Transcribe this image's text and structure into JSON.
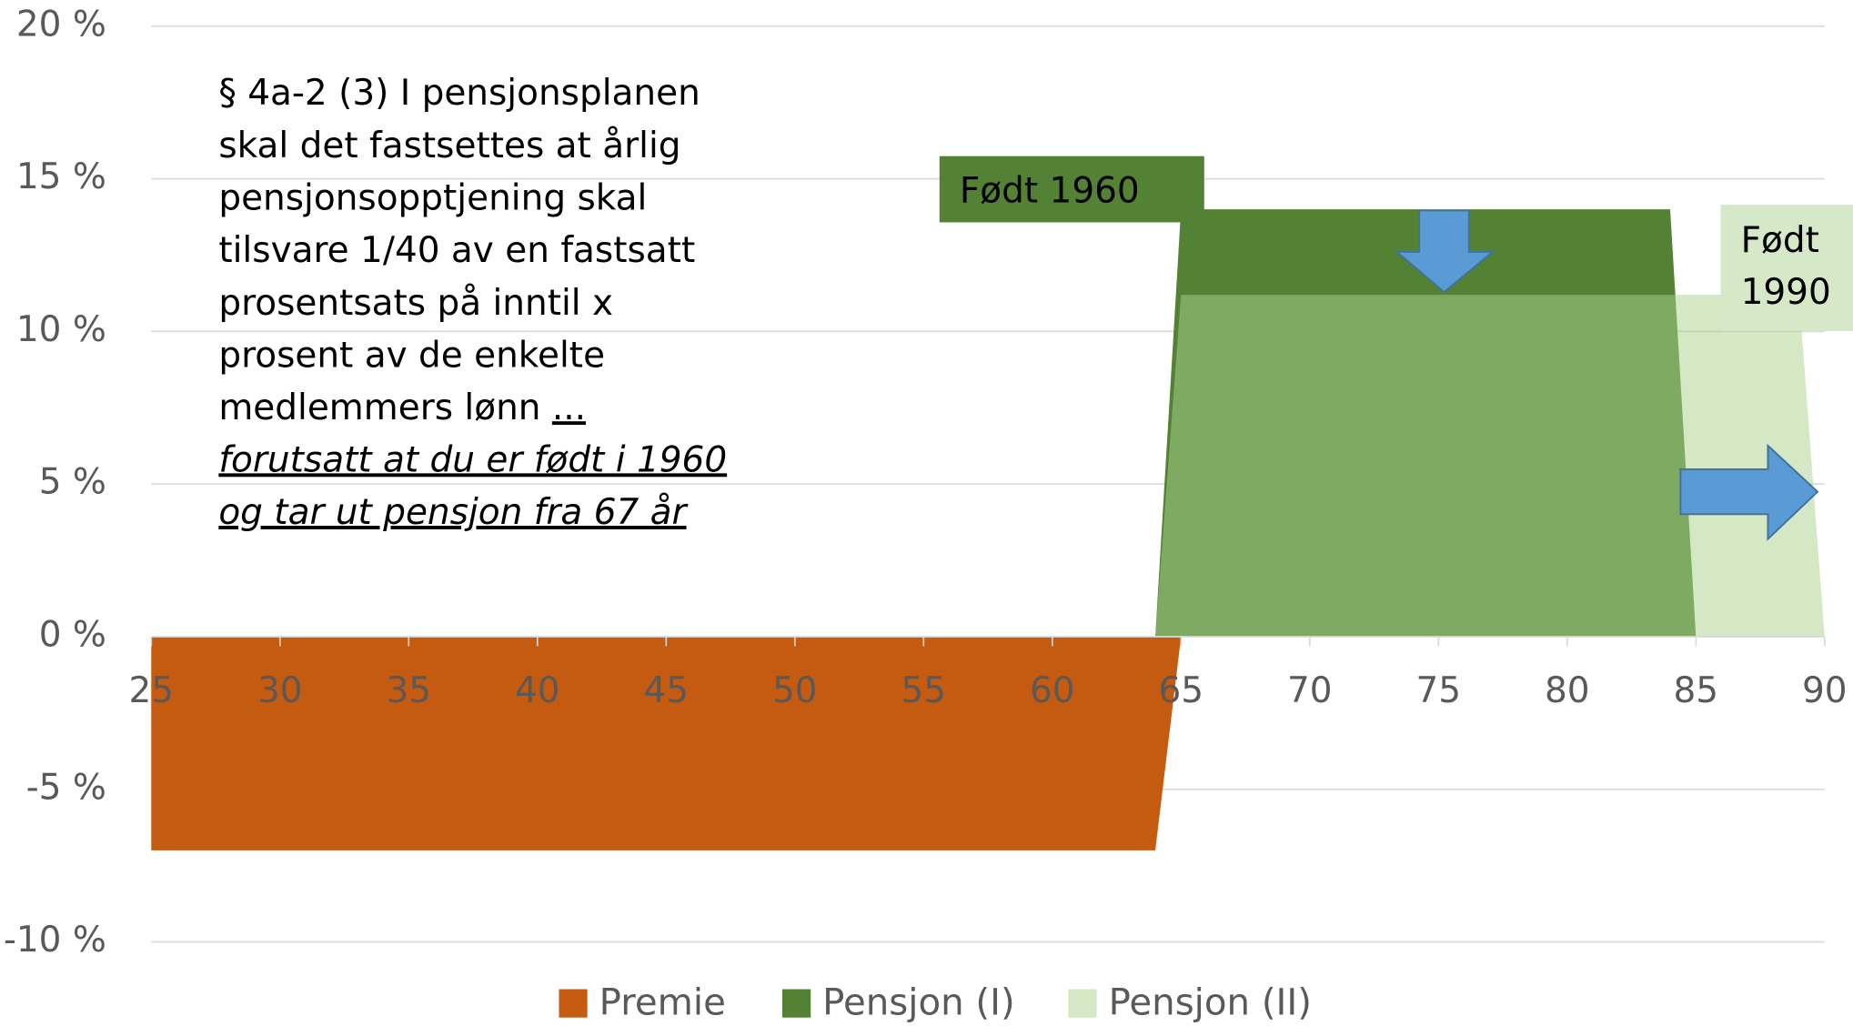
{
  "chart_data": {
    "type": "area",
    "xlim": [
      25,
      90
    ],
    "xticks": [
      25,
      30,
      35,
      40,
      45,
      50,
      55,
      60,
      65,
      70,
      75,
      80,
      85,
      90
    ],
    "ylim": [
      -10,
      20
    ],
    "yticks": [
      {
        "value": -10,
        "label": "-10 %"
      },
      {
        "value": -5,
        "label": "-5 %"
      },
      {
        "value": 0,
        "label": "0 %"
      },
      {
        "value": 5,
        "label": "5 %"
      },
      {
        "value": 10,
        "label": "10 %"
      },
      {
        "value": 15,
        "label": "15 %"
      },
      {
        "value": 20,
        "label": "20 %"
      }
    ],
    "grid": true,
    "legend": "bottom",
    "series": [
      {
        "name": "Premie",
        "color": "#c55a11",
        "x": [
          25,
          64,
          65
        ],
        "values": [
          -7,
          -7,
          0
        ]
      },
      {
        "name": "Pensjon (I)",
        "color": "#548235",
        "x": [
          64,
          65,
          84,
          85
        ],
        "values": [
          0,
          14,
          14,
          0
        ]
      },
      {
        "name": "Pensjon (II)",
        "color": "#a9d18e",
        "x": [
          64,
          65,
          89,
          90
        ],
        "values": [
          0,
          11.2,
          11.2,
          0
        ]
      }
    ],
    "note": {
      "lines": [
        "§ 4a-2 (3) I pensjonsplanen",
        "skal det fastsettes at årlig",
        "pensjonsopptjening skal",
        "tilsvare 1/40 av en fastsatt",
        "prosentsats på inntil x",
        "prosent av de enkelte",
        "medlemmers lønn"
      ],
      "ellipsis": "...",
      "emphasis": [
        "forutsatt at du er født i 1960",
        "og tar ut pensjon fra 67 år"
      ]
    },
    "labels": [
      {
        "lines": [
          "Født 1960"
        ]
      },
      {
        "lines": [
          "Født",
          "1990"
        ]
      }
    ]
  }
}
